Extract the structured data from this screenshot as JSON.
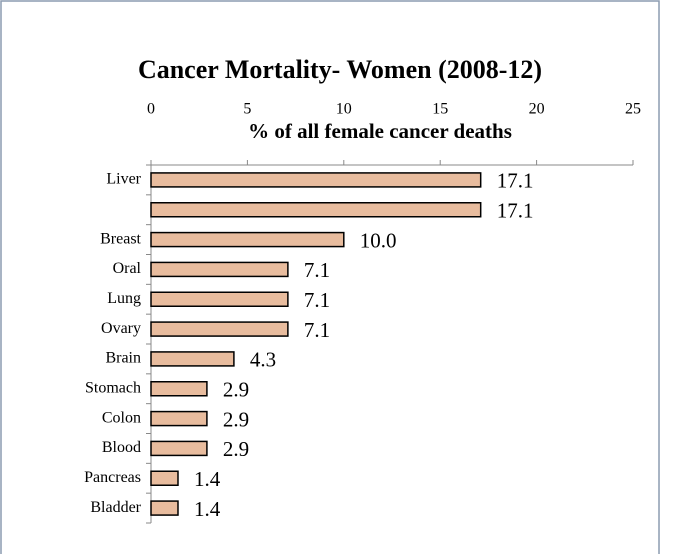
{
  "chart_data": {
    "type": "bar",
    "orientation": "horizontal",
    "title": "Cancer Mortality- Women (2008-12)",
    "x_label": "% of all female cancer deaths",
    "categories": [
      "Liver",
      null,
      "Breast",
      "Oral",
      "Lung",
      "Ovary",
      "Brain",
      "Stomach",
      "Colon",
      "Blood",
      "Pancreas",
      "Bladder"
    ],
    "values": [
      17.1,
      17.1,
      10.0,
      7.1,
      7.1,
      7.1,
      4.3,
      2.9,
      2.9,
      2.9,
      1.4,
      1.4
    ],
    "value_labels": [
      "17.1",
      "17.1",
      "10.0",
      "7.1",
      "7.1",
      "7.1",
      "4.3",
      "2.9",
      "2.9",
      "2.9",
      "1.4",
      "1.4"
    ],
    "color": "#e8bc9e",
    "xlim": [
      0,
      25
    ],
    "xticks": [
      0,
      5,
      10,
      15,
      20,
      25
    ]
  }
}
